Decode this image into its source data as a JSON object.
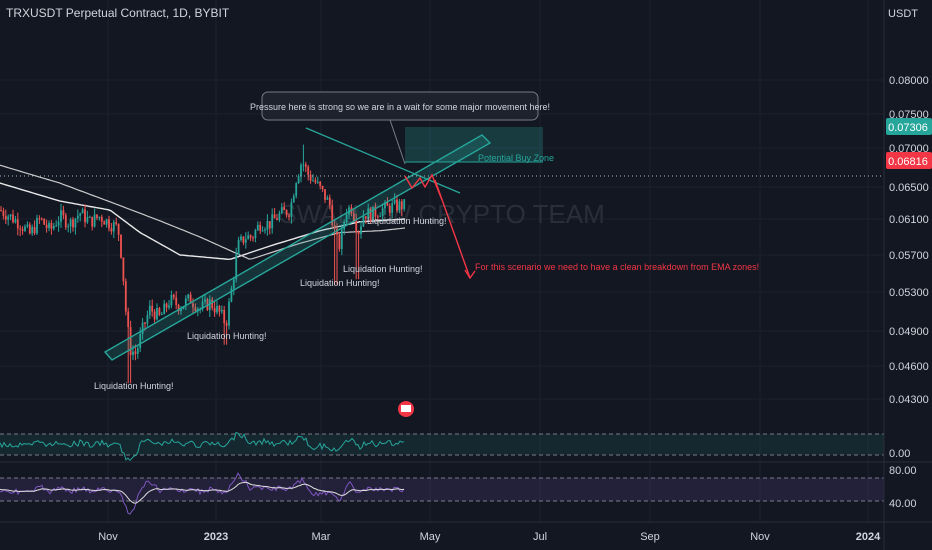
{
  "header": {
    "title": "TRXUSDT Perpetual Contract, 1D, BYBIT",
    "currency": "USDT"
  },
  "price_tags": {
    "green": "0.07306",
    "red": "0.06816",
    "green_color": "#26a69a",
    "red_color": "#f23645"
  },
  "indicator_labels": {
    "osc1_value": "0.00",
    "rsi_top": "80.00",
    "rsi_bottom": "40.00"
  },
  "watermark": "SWALLOW CRYPTO TEAM",
  "annotations": {
    "callout": "Pressure here is strong so we are in a wait for some major movement here!",
    "buy_zone": "Potential Buy Zone",
    "breakdown": "For this scenario we need to have a clean breakdown from EMA zones!",
    "liq1": "Liquidation Hunting!",
    "liq2": "Liquidation Hunting!",
    "liq3": "Liquidation Hunting!",
    "liq4": "Liquidation Hunting!",
    "liq5": "Liquidation Hunting!"
  },
  "chart_data": {
    "type": "line",
    "title": "TRXUSDT Perpetual Contract, 1D, BYBIT",
    "yaxis_ticks": [
      "0.08000",
      "0.07500",
      "0.07000",
      "0.06500",
      "0.06100",
      "0.05700",
      "0.05300",
      "0.04900",
      "0.04600",
      "0.04300"
    ],
    "xaxis_ticks": [
      "Nov",
      "2023",
      "Mar",
      "May",
      "Jul",
      "Sep",
      "Nov",
      "2024"
    ],
    "ylim": [
      0.041,
      0.084
    ],
    "series": [
      {
        "points": [
          [
            0,
            0.0655
          ],
          [
            10,
            0.0648
          ],
          [
            20,
            0.064
          ],
          [
            30,
            0.0628
          ],
          [
            40,
            0.0645
          ],
          [
            50,
            0.0632
          ],
          [
            60,
            0.0648
          ],
          [
            70,
            0.064
          ],
          [
            80,
            0.0652
          ],
          [
            90,
            0.0642
          ],
          [
            100,
            0.0648
          ],
          [
            110,
            0.064
          ],
          [
            118,
            0.0635
          ],
          [
            122,
            0.06
          ],
          [
            126,
            0.054
          ],
          [
            130,
            0.05
          ],
          [
            136,
            0.0495
          ],
          [
            142,
            0.052
          ],
          [
            150,
            0.0545
          ],
          [
            160,
            0.0535
          ],
          [
            170,
            0.0555
          ],
          [
            180,
            0.0548
          ],
          [
            190,
            0.0556
          ],
          [
            200,
            0.0545
          ],
          [
            210,
            0.0552
          ],
          [
            220,
            0.054
          ],
          [
            226,
            0.0528
          ],
          [
            232,
            0.057
          ],
          [
            238,
            0.0615
          ],
          [
            245,
            0.0625
          ],
          [
            252,
            0.0625
          ],
          [
            260,
            0.064
          ],
          [
            270,
            0.064
          ],
          [
            280,
            0.065
          ],
          [
            290,
            0.0655
          ],
          [
            296,
            0.069
          ],
          [
            302,
            0.071
          ],
          [
            308,
            0.0695
          ],
          [
            316,
            0.0685
          ],
          [
            324,
            0.0672
          ],
          [
            330,
            0.066
          ],
          [
            336,
            0.0622
          ],
          [
            340,
            0.0615
          ],
          [
            346,
            0.0655
          ],
          [
            352,
            0.0658
          ],
          [
            358,
            0.063
          ],
          [
            364,
            0.0652
          ],
          [
            372,
            0.065
          ],
          [
            380,
            0.0655
          ],
          [
            390,
            0.0658
          ],
          [
            398,
            0.066
          ],
          [
            405,
            0.066
          ]
        ]
      },
      {
        "name": "EMA",
        "points": [
          [
            0,
            0.0685
          ],
          [
            60,
            0.0665
          ],
          [
            110,
            0.0655
          ],
          [
            140,
            0.063
          ],
          [
            180,
            0.0605
          ],
          [
            230,
            0.06
          ],
          [
            270,
            0.0615
          ],
          [
            320,
            0.0632
          ],
          [
            360,
            0.0642
          ],
          [
            405,
            0.0645
          ]
        ]
      },
      {
        "name": "EMA",
        "points": [
          [
            0,
            0.0705
          ],
          [
            60,
            0.0685
          ],
          [
            120,
            0.066
          ],
          [
            160,
            0.0643
          ],
          [
            200,
            0.0625
          ],
          [
            250,
            0.06
          ],
          [
            300,
            0.0618
          ],
          [
            340,
            0.063
          ],
          [
            380,
            0.0632
          ],
          [
            405,
            0.0635
          ]
        ]
      }
    ]
  }
}
